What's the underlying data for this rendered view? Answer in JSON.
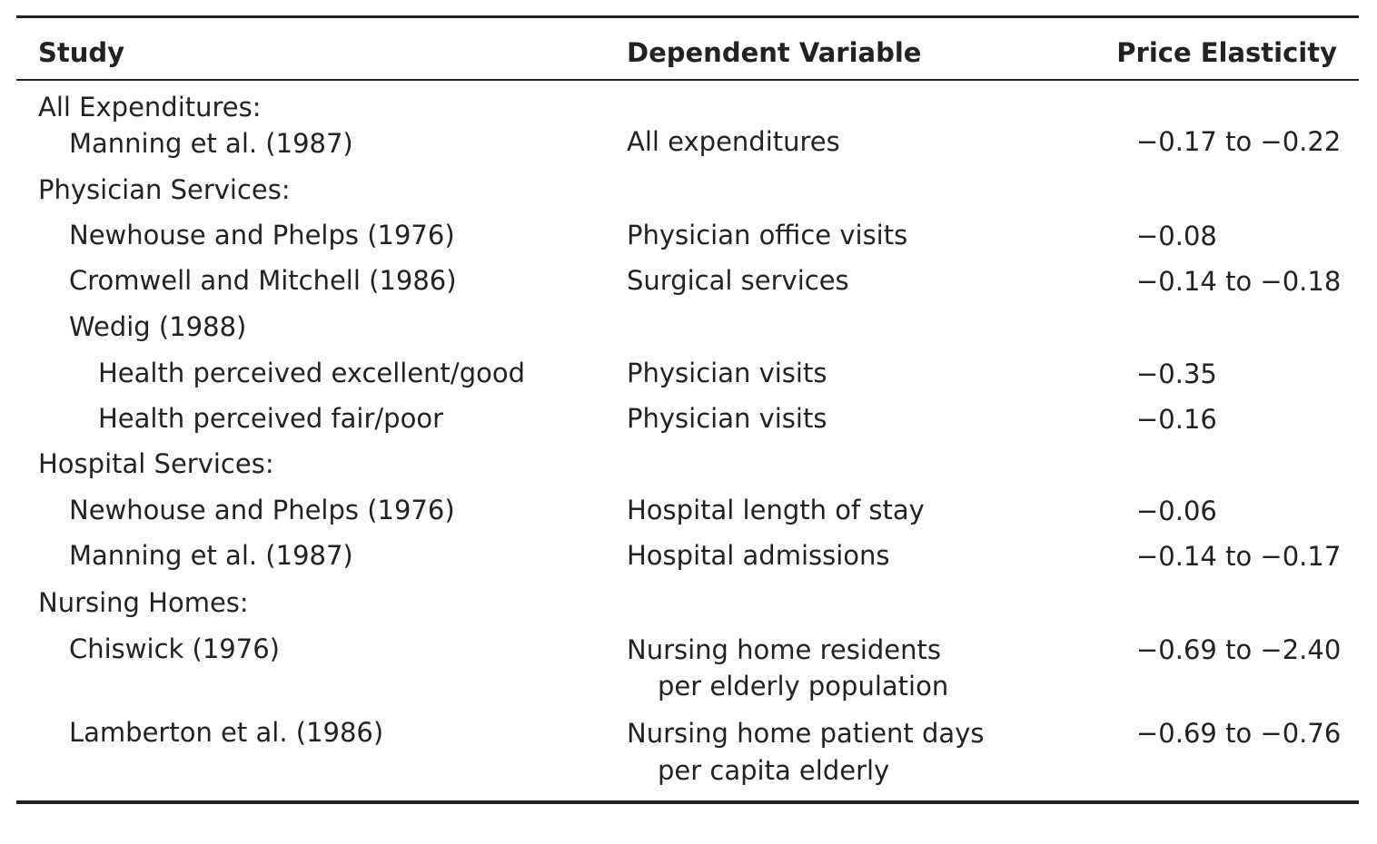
{
  "headers": {
    "study": "Study",
    "dependent_variable": "Dependent Variable",
    "price_elasticity": "Price Elasticity"
  },
  "sections": [
    {
      "title": "All Expenditures:",
      "rows": [
        {
          "study": "Manning et al. (1987)",
          "dv": "All expenditures",
          "elasticity": "−0.17 to −0.22"
        }
      ]
    },
    {
      "title": "Physician Services:",
      "rows": [
        {
          "study": "Newhouse and Phelps (1976)",
          "dv": "Physician office visits",
          "elasticity": "−0.08"
        },
        {
          "study": "Cromwell and Mitchell (1986)",
          "dv": "Surgical services",
          "elasticity": "−0.14 to −0.18"
        },
        {
          "study": "Wedig (1988)"
        },
        {
          "study": "Health perceived excellent/good",
          "dv": "Physician visits",
          "elasticity": "−0.35"
        },
        {
          "study": "Health perceived fair/poor",
          "dv": "Physician visits",
          "elasticity": "−0.16"
        }
      ]
    },
    {
      "title": "Hospital Services:",
      "rows": [
        {
          "study": "Newhouse and Phelps (1976)",
          "dv": "Hospital length of stay",
          "elasticity": "−0.06"
        },
        {
          "study": "Manning et al. (1987)",
          "dv": "Hospital admissions",
          "elasticity": "−0.14 to −0.17"
        }
      ]
    },
    {
      "title": "Nursing Homes:",
      "rows": [
        {
          "study": "Chiswick (1976)",
          "dv": "Nursing home residents",
          "dv_cont": "per elderly population",
          "elasticity": "−0.69 to −2.40"
        },
        {
          "study": "Lamberton et al. (1986)",
          "dv": "Nursing home patient days",
          "dv_cont": "per capita elderly",
          "elasticity": "−0.69 to −0.76"
        }
      ]
    }
  ]
}
